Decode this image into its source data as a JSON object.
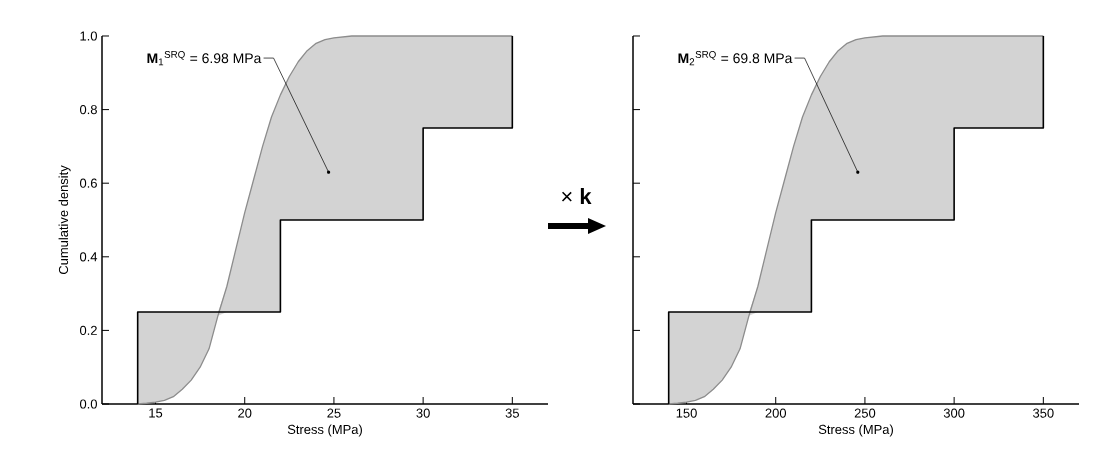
{
  "chart_data": [
    {
      "type": "line",
      "xlabel": "Stress (MPa)",
      "ylabel": "Cumulative density",
      "xlim": [
        12,
        37
      ],
      "xticks": [
        15,
        20,
        25,
        30,
        35
      ],
      "ylim": [
        0,
        1
      ],
      "yticks": [
        {
          "value": 0,
          "label": "0.0"
        },
        {
          "value": 0.2,
          "label": "0.2"
        },
        {
          "value": 0.4,
          "label": "0.4"
        },
        {
          "value": 0.6,
          "label": "0.6"
        },
        {
          "value": 0.8,
          "label": "0.8"
        },
        {
          "value": 1,
          "label": "1.0"
        }
      ],
      "series": [
        {
          "color": "#8c8c8c",
          "x": [
            14,
            14.5,
            15,
            15.5,
            16,
            16.5,
            17,
            17.5,
            18,
            18.5,
            19,
            19.5,
            20,
            20.5,
            21,
            21.5,
            22,
            22,
            22.5,
            23,
            23.5,
            24,
            24.5,
            25,
            26,
            28,
            30,
            30,
            35,
            35
          ],
          "values": [
            0,
            0.002,
            0.005,
            0.01,
            0.02,
            0.04,
            0.065,
            0.1,
            0.15,
            0.24,
            0.32,
            0.42,
            0.52,
            0.61,
            0.7,
            0.78,
            0.84,
            0.84,
            0.89,
            0.93,
            0.96,
            0.98,
            0.99,
            0.995,
            1,
            1,
            1,
            1,
            1,
            1
          ],
          "lower": [
            0,
            0.002,
            0.005,
            0.01,
            0.02,
            0.04,
            0.065,
            0.1,
            0.15,
            0.24,
            0.25,
            0.25,
            0.25,
            0.25,
            0.25,
            0.25,
            0.25,
            0.5,
            0.5,
            0.5,
            0.5,
            0.5,
            0.5,
            0.5,
            0.5,
            0.5,
            0.5,
            0.75,
            0.75,
            1
          ],
          "upper": [
            0.25,
            0.25,
            0.25,
            0.25,
            0.25,
            0.25,
            0.25,
            0.25,
            0.25,
            0.25,
            0.32,
            0.42,
            0.52,
            0.61,
            0.7,
            0.78,
            0.84,
            0.84,
            0.89,
            0.93,
            0.96,
            0.98,
            0.99,
            0.995,
            1,
            1,
            1,
            1,
            1,
            1
          ]
        },
        {
          "type": "step",
          "color": "#000000",
          "x": [
            14,
            14,
            22,
            30,
            35
          ],
          "values": [
            0,
            0.25,
            0.5,
            0.75,
            1
          ]
        }
      ],
      "annotations": [
        {
          "text": "**M**$_{1}$$^{SRQ}$ = 6.98 MPa",
          "x": 24.7,
          "y": 0.63
        },
        "× **k**"
      ]
    },
    {
      "type": "line",
      "xlabel": "Stress (MPa)",
      "xlim": [
        120,
        370
      ],
      "xticks": [
        150,
        200,
        250,
        300,
        350
      ],
      "ylim": [
        0,
        1
      ],
      "yticks": [
        {
          "value": 0,
          "label": null
        },
        {
          "value": 0.2,
          "label": null
        },
        {
          "value": 0.4,
          "label": null
        },
        {
          "value": 0.6,
          "label": null
        },
        {
          "value": 0.8,
          "label": null
        },
        {
          "value": 1,
          "label": null
        }
      ],
      "tick_labels": "x",
      "series": [
        {
          "color": "#8c8c8c",
          "x": [
            140,
            145,
            150,
            155,
            160,
            165,
            170,
            175,
            180,
            185,
            190,
            195,
            200,
            205,
            210,
            215,
            220,
            220,
            225,
            230,
            235,
            240,
            245,
            250,
            260,
            280,
            300,
            300,
            350,
            350
          ],
          "values": [
            0,
            0.002,
            0.005,
            0.01,
            0.02,
            0.04,
            0.065,
            0.1,
            0.15,
            0.24,
            0.32,
            0.42,
            0.52,
            0.61,
            0.7,
            0.78,
            0.84,
            0.84,
            0.89,
            0.93,
            0.96,
            0.98,
            0.99,
            0.995,
            1,
            1,
            1,
            1,
            1,
            1
          ],
          "lower": [
            0,
            0.002,
            0.005,
            0.01,
            0.02,
            0.04,
            0.065,
            0.1,
            0.15,
            0.24,
            0.25,
            0.25,
            0.25,
            0.25,
            0.25,
            0.25,
            0.25,
            0.5,
            0.5,
            0.5,
            0.5,
            0.5,
            0.5,
            0.5,
            0.5,
            0.5,
            0.5,
            0.75,
            0.75,
            1
          ],
          "upper": [
            0.25,
            0.25,
            0.25,
            0.25,
            0.25,
            0.25,
            0.25,
            0.25,
            0.25,
            0.25,
            0.32,
            0.42,
            0.52,
            0.61,
            0.7,
            0.78,
            0.84,
            0.84,
            0.89,
            0.93,
            0.96,
            0.98,
            0.99,
            0.995,
            1,
            1,
            1,
            1,
            1,
            1
          ]
        },
        {
          "type": "step",
          "color": "#000000",
          "x": [
            140,
            140,
            220,
            300,
            350
          ],
          "values": [
            0,
            0.25,
            0.5,
            0.75,
            1
          ]
        }
      ],
      "annotations": [
        {
          "text": "**M**$_{2}$$^{SRQ}$ = 69.8 MPa",
          "x": 246,
          "y": 0.63
        }
      ]
    }
  ]
}
